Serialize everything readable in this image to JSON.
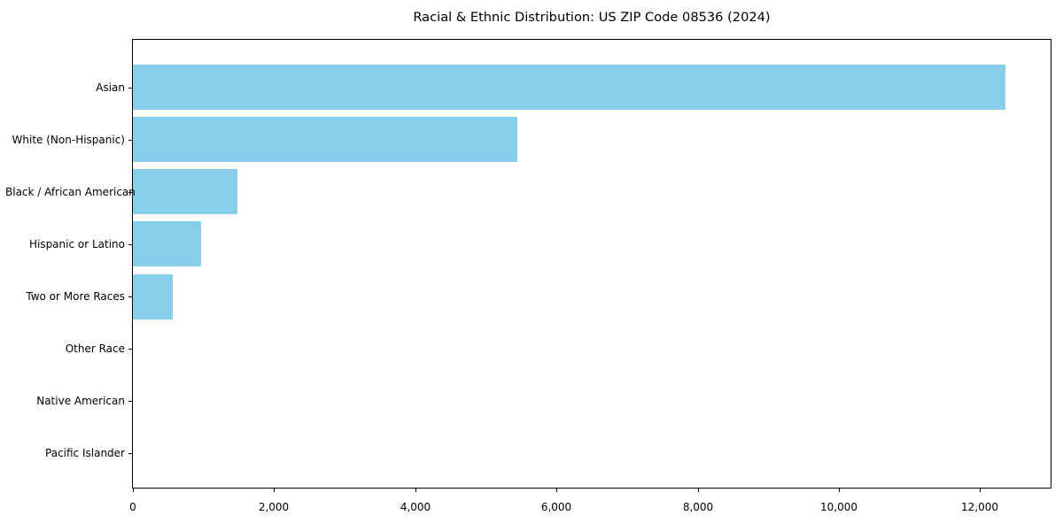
{
  "chart_data": {
    "type": "bar",
    "orientation": "horizontal",
    "title": "Racial & Ethnic Distribution: US ZIP Code 08536 (2024)",
    "categories": [
      "Asian",
      "White (Non-Hispanic)",
      "Black / African American",
      "Hispanic or Latino",
      "Two or More Races",
      "Other Race",
      "Native American",
      "Pacific Islander"
    ],
    "values": [
      12360,
      5440,
      1480,
      960,
      560,
      0,
      0,
      0
    ],
    "xlabel": "",
    "ylabel": "",
    "xlim": [
      0,
      13000
    ],
    "xticks": [
      {
        "value": 0,
        "label": "0"
      },
      {
        "value": 2000,
        "label": "2,000"
      },
      {
        "value": 4000,
        "label": "4,000"
      },
      {
        "value": 6000,
        "label": "6,000"
      },
      {
        "value": 8000,
        "label": "8,000"
      },
      {
        "value": 10000,
        "label": "10,000"
      },
      {
        "value": 12000,
        "label": "12,000"
      }
    ],
    "bar_color": "#87CEEB",
    "background_color": "#ffffff",
    "text_color": "#000000",
    "spine_color": "#000000",
    "grid": false,
    "legend": null
  }
}
